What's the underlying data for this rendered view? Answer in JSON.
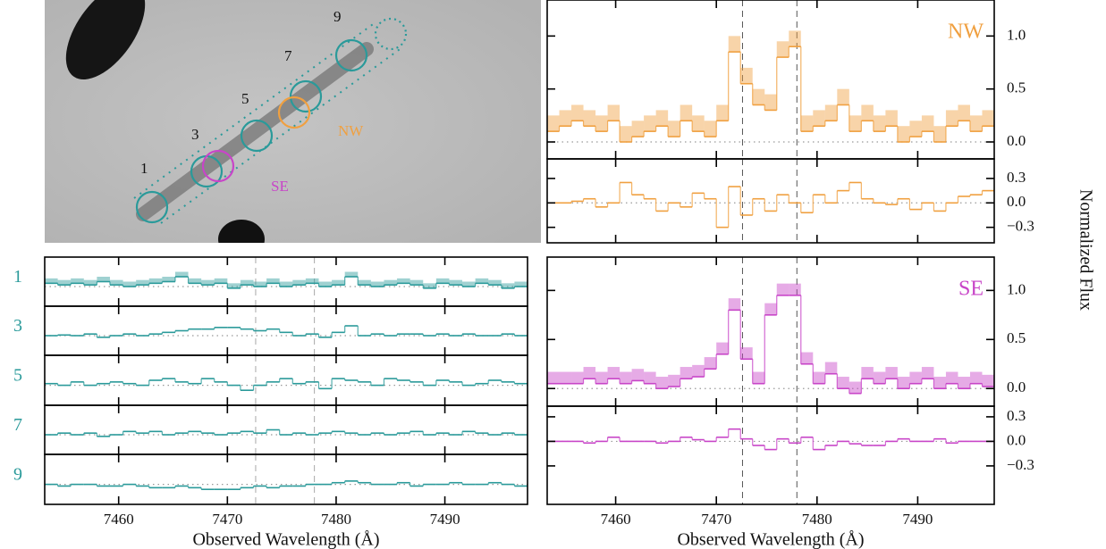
{
  "image": {
    "labels": [
      "1",
      "3",
      "5",
      "7",
      "9",
      "NW",
      "SE"
    ]
  },
  "chart_data": [
    {
      "type": "step",
      "xlabel": "Observed Wavelength (Å)",
      "xlim": [
        7453.2,
        7497.6
      ],
      "xticks": [
        7460,
        7470,
        7480,
        7490
      ],
      "bins": [
        7453.2,
        7454.4,
        7455.6,
        7456.8,
        7458.0,
        7459.2,
        7460.4,
        7461.6,
        7462.8,
        7464.0,
        7465.2,
        7466.4,
        7467.6,
        7468.8,
        7470.0,
        7471.2,
        7472.4,
        7473.6,
        7474.8,
        7476.0,
        7477.2,
        7478.4,
        7479.6,
        7480.8,
        7482.0,
        7483.2,
        7484.4,
        7485.6,
        7486.8,
        7488.0,
        7489.2,
        7490.4,
        7491.6,
        7492.8,
        7494.0,
        7495.2,
        7496.4,
        7497.6
      ],
      "vlines": [
        7472.6,
        7478.0
      ],
      "panels": [
        {
          "ylim": [
            -0.6,
            0.9
          ],
          "series": [
            {
              "name": "1",
              "color": "#2a9a9a",
              "band": 0.15,
              "values": [
                0.1,
                0.05,
                0.1,
                0.05,
                0.15,
                0.05,
                0.0,
                0.05,
                0.1,
                0.15,
                0.3,
                0.1,
                0.05,
                0.1,
                -0.05,
                0.05,
                0.0,
                0.1,
                0.0,
                0.05,
                0.1,
                0.0,
                0.05,
                0.3,
                0.05,
                0.0,
                0.05,
                0.1,
                0.05,
                -0.05,
                0.1,
                0.05,
                0.0,
                0.1,
                0.05,
                -0.05,
                0.0
              ]
            }
          ]
        },
        {
          "ylim": [
            -0.6,
            0.9
          ],
          "series": [
            {
              "name": "3",
              "color": "#2a9a9a",
              "values": [
                0.0,
                0.02,
                0.0,
                0.05,
                -0.05,
                0.0,
                0.05,
                0.0,
                0.05,
                0.1,
                0.15,
                0.2,
                0.2,
                0.25,
                0.25,
                0.2,
                0.15,
                0.2,
                0.1,
                0.0,
                0.05,
                -0.05,
                0.1,
                0.3,
                0.0,
                0.05,
                0.0,
                0.05,
                0.05,
                0.0,
                0.05,
                0.0,
                0.05,
                0.0,
                0.0,
                0.05,
                0.0
              ]
            }
          ]
        },
        {
          "ylim": [
            -0.6,
            0.9
          ],
          "series": [
            {
              "name": "5",
              "color": "#2a9a9a",
              "values": [
                0.05,
                0.0,
                0.1,
                0.0,
                0.05,
                0.1,
                0.05,
                0.0,
                0.15,
                0.2,
                0.1,
                0.05,
                0.2,
                0.1,
                0.0,
                -0.15,
                0.0,
                0.1,
                0.2,
                0.05,
                0.1,
                -0.1,
                0.2,
                0.15,
                0.1,
                0.0,
                0.2,
                0.15,
                0.1,
                0.0,
                0.15,
                0.1,
                0.0,
                0.05,
                0.15,
                0.1,
                0.05
              ]
            }
          ]
        },
        {
          "ylim": [
            -0.6,
            0.9
          ],
          "series": [
            {
              "name": "7",
              "color": "#2a9a9a",
              "values": [
                0.0,
                0.05,
                0.0,
                0.05,
                -0.05,
                0.0,
                0.1,
                0.05,
                0.1,
                0.0,
                0.05,
                0.1,
                0.05,
                0.0,
                0.05,
                0.1,
                0.05,
                0.15,
                0.0,
                0.05,
                0.0,
                0.05,
                0.1,
                0.05,
                0.0,
                0.05,
                0.0,
                0.05,
                0.1,
                0.0,
                0.05,
                0.0,
                0.1,
                0.05,
                0.0,
                0.05,
                0.0
              ]
            }
          ]
        },
        {
          "ylim": [
            -0.6,
            0.9
          ],
          "series": [
            {
              "name": "9",
              "color": "#2a9a9a",
              "values": [
                0.0,
                -0.05,
                0.0,
                0.0,
                -0.05,
                -0.05,
                0.0,
                -0.05,
                -0.1,
                -0.1,
                -0.05,
                -0.1,
                -0.15,
                -0.15,
                -0.15,
                -0.1,
                -0.05,
                -0.1,
                -0.05,
                -0.05,
                0.0,
                0.0,
                0.05,
                0.1,
                0.05,
                0.0,
                0.0,
                0.05,
                -0.05,
                0.0,
                0.0,
                0.05,
                0.0,
                0.0,
                0.05,
                0.0,
                -0.05
              ]
            }
          ]
        }
      ]
    },
    {
      "type": "step",
      "xlabel": "Observed Wavelength (Å)",
      "ylabel": "Normalized Flux",
      "xlim": [
        7453.2,
        7497.6
      ],
      "xticks": [
        7460,
        7470,
        7480,
        7490
      ],
      "bins": [
        7453.2,
        7454.4,
        7455.6,
        7456.8,
        7458.0,
        7459.2,
        7460.4,
        7461.6,
        7462.8,
        7464.0,
        7465.2,
        7466.4,
        7467.6,
        7468.8,
        7470.0,
        7471.2,
        7472.4,
        7473.6,
        7474.8,
        7476.0,
        7477.2,
        7478.4,
        7479.6,
        7480.8,
        7482.0,
        7483.2,
        7484.4,
        7485.6,
        7486.8,
        7488.0,
        7489.2,
        7490.4,
        7491.6,
        7492.8,
        7494.0,
        7495.2,
        7496.4,
        7497.6
      ],
      "vlines": [
        7472.6,
        7478.0
      ],
      "panels": [
        {
          "ylim": [
            -0.16,
            1.34
          ],
          "yticks": [
            {
              "value": 0,
              "label": "0.0"
            },
            0.5,
            {
              "value": 1,
              "label": "1.0"
            }
          ],
          "series": [
            {
              "name": "NW",
              "color": "#f0a040",
              "band": 0.15,
              "values": [
                0.1,
                0.15,
                0.2,
                0.15,
                0.1,
                0.2,
                0.0,
                0.05,
                0.1,
                0.15,
                0.05,
                0.2,
                0.1,
                0.05,
                0.2,
                0.85,
                0.55,
                0.35,
                0.3,
                0.8,
                0.9,
                0.1,
                0.15,
                0.2,
                0.35,
                0.1,
                0.2,
                0.1,
                0.15,
                0.0,
                0.05,
                0.1,
                0.0,
                0.15,
                0.2,
                0.1,
                0.15
              ]
            }
          ]
        },
        {
          "ylim": [
            -0.49,
            0.54
          ],
          "yticks": [
            {
              "value": -0.3,
              "label": "−0.3"
            },
            {
              "value": 0,
              "label": "0.0"
            },
            0.3
          ],
          "series": [
            {
              "color": "#f0a040",
              "values": [
                0.0,
                0.0,
                0.02,
                0.05,
                -0.05,
                0.0,
                0.25,
                0.1,
                0.05,
                -0.1,
                0.0,
                -0.05,
                0.12,
                0.05,
                -0.3,
                0.2,
                -0.15,
                0.05,
                -0.1,
                0.1,
                0.0,
                -0.12,
                0.1,
                0.0,
                0.15,
                0.25,
                0.05,
                0.0,
                -0.02,
                0.05,
                -0.08,
                0.0,
                -0.1,
                0.0,
                0.08,
                0.1,
                0.15
              ]
            }
          ]
        },
        {
          "ylim": [
            -0.18,
            1.34
          ],
          "yticks": [
            {
              "value": 0,
              "label": "0.0"
            },
            0.5,
            {
              "value": 1,
              "label": "1.0"
            }
          ],
          "series": [
            {
              "name": "SE",
              "color": "#c845c8",
              "band": 0.12,
              "values": [
                0.05,
                0.05,
                0.05,
                0.1,
                0.05,
                0.1,
                0.05,
                0.08,
                0.05,
                0.0,
                0.02,
                0.1,
                0.12,
                0.2,
                0.35,
                0.8,
                0.3,
                0.05,
                0.75,
                0.95,
                0.95,
                0.25,
                0.05,
                0.15,
                0.0,
                -0.05,
                0.1,
                0.05,
                0.1,
                0.0,
                0.05,
                0.1,
                0.0,
                0.05,
                0.0,
                0.05,
                0.02
              ]
            }
          ]
        },
        {
          "ylim": [
            -0.77,
            0.43
          ],
          "yticks": [
            {
              "value": -0.3,
              "label": "−0.3"
            },
            {
              "value": 0,
              "label": "0.0"
            },
            0.3
          ],
          "series": [
            {
              "color": "#c845c8",
              "values": [
                0,
                0,
                0,
                -0.02,
                0,
                0.05,
                0,
                0,
                0,
                -0.02,
                0,
                0.05,
                0.02,
                0,
                0.05,
                0.15,
                0.03,
                -0.05,
                -0.1,
                0.03,
                -0.02,
                0.05,
                -0.1,
                -0.05,
                0,
                -0.03,
                -0.05,
                -0.05,
                0,
                0.03,
                0,
                0,
                0.03,
                -0.02,
                0,
                0,
                0
              ]
            }
          ]
        }
      ]
    }
  ]
}
